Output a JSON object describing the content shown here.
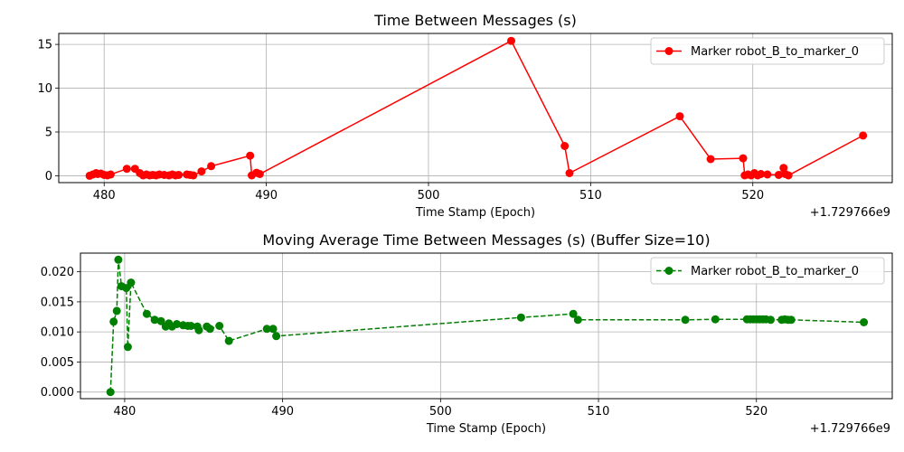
{
  "chart_data": [
    {
      "type": "line",
      "title": "Time Between Messages (s)",
      "xlabel": "Time Stamp (Epoch)",
      "ylabel": "",
      "x_offset_label": "+1.729766e9",
      "xlim": [
        477.2,
        528.6
      ],
      "ylim": [
        -0.78,
        16.25
      ],
      "xticks": [
        480,
        490,
        500,
        510,
        520
      ],
      "yticks": [
        0,
        5,
        10,
        15
      ],
      "grid": true,
      "legend_position": "upper right",
      "series": [
        {
          "name": "Marker robot_B_to_marker_0",
          "color": "#ff0000",
          "line_style": "solid",
          "marker": "circle",
          "x": [
            479.1,
            479.3,
            479.5,
            479.6,
            479.8,
            480.0,
            480.2,
            480.4,
            481.4,
            481.9,
            482.2,
            482.4,
            482.6,
            482.8,
            483.0,
            483.2,
            483.4,
            483.7,
            484.0,
            484.2,
            484.4,
            484.6,
            485.1,
            485.3,
            485.5,
            486.0,
            486.6,
            489.0,
            489.1,
            489.4,
            489.6,
            505.1,
            508.4,
            508.7,
            515.5,
            517.4,
            519.4,
            519.5,
            519.7,
            519.9,
            520.1,
            520.3,
            520.5,
            520.9,
            521.6,
            521.9,
            522.0,
            522.2,
            526.8
          ],
          "y": [
            0.0,
            0.15,
            0.3,
            0.2,
            0.25,
            0.1,
            0.05,
            0.15,
            0.8,
            0.8,
            0.3,
            0.05,
            0.15,
            0.05,
            0.1,
            0.05,
            0.15,
            0.1,
            0.05,
            0.15,
            0.05,
            0.1,
            0.15,
            0.1,
            0.05,
            0.5,
            1.1,
            2.3,
            0.05,
            0.35,
            0.2,
            15.4,
            3.4,
            0.3,
            6.8,
            1.9,
            2.0,
            0.05,
            0.15,
            0.05,
            0.3,
            0.05,
            0.2,
            0.15,
            0.1,
            0.9,
            0.2,
            0.05,
            4.6
          ]
        }
      ]
    },
    {
      "type": "line",
      "title": "Moving Average Time Between Messages (s) (Buffer Size=10)",
      "xlabel": "Time Stamp (Epoch)",
      "ylabel": "",
      "x_offset_label": "+1.729766e9",
      "xlim": [
        477.2,
        528.6
      ],
      "ylim": [
        -0.0011,
        0.0231
      ],
      "xticks": [
        480,
        490,
        500,
        510,
        520
      ],
      "yticks": [
        0.0,
        0.005,
        0.01,
        0.015,
        0.02
      ],
      "ytick_labels": [
        "0.000",
        "0.005",
        "0.010",
        "0.015",
        "0.020"
      ],
      "grid": true,
      "legend_position": "upper right",
      "series": [
        {
          "name": "Marker robot_B_to_marker_0",
          "color": "#008000",
          "line_style": "dashed",
          "marker": "circle",
          "x": [
            479.1,
            479.3,
            479.5,
            479.6,
            479.8,
            480.1,
            480.2,
            480.4,
            481.4,
            481.9,
            482.3,
            482.6,
            482.8,
            483.0,
            483.3,
            483.7,
            484.0,
            484.2,
            484.6,
            484.7,
            485.2,
            485.4,
            486.0,
            486.6,
            489.0,
            489.4,
            489.6,
            505.1,
            508.4,
            508.7,
            515.5,
            517.4,
            519.4,
            519.6,
            519.8,
            520.0,
            520.2,
            520.4,
            520.6,
            520.9,
            521.6,
            521.8,
            522.0,
            522.2,
            526.8
          ],
          "y": [
            0.0,
            0.0117,
            0.0135,
            0.022,
            0.0176,
            0.0173,
            0.0075,
            0.0182,
            0.013,
            0.012,
            0.0118,
            0.0109,
            0.0114,
            0.0109,
            0.0113,
            0.0111,
            0.011,
            0.011,
            0.0109,
            0.0103,
            0.0109,
            0.0105,
            0.011,
            0.0085,
            0.0105,
            0.0105,
            0.0093,
            0.0124,
            0.013,
            0.012,
            0.012,
            0.0121,
            0.0121,
            0.0121,
            0.0121,
            0.0121,
            0.0121,
            0.0121,
            0.0121,
            0.012,
            0.012,
            0.0121,
            0.012,
            0.012,
            0.0116
          ]
        }
      ]
    }
  ]
}
